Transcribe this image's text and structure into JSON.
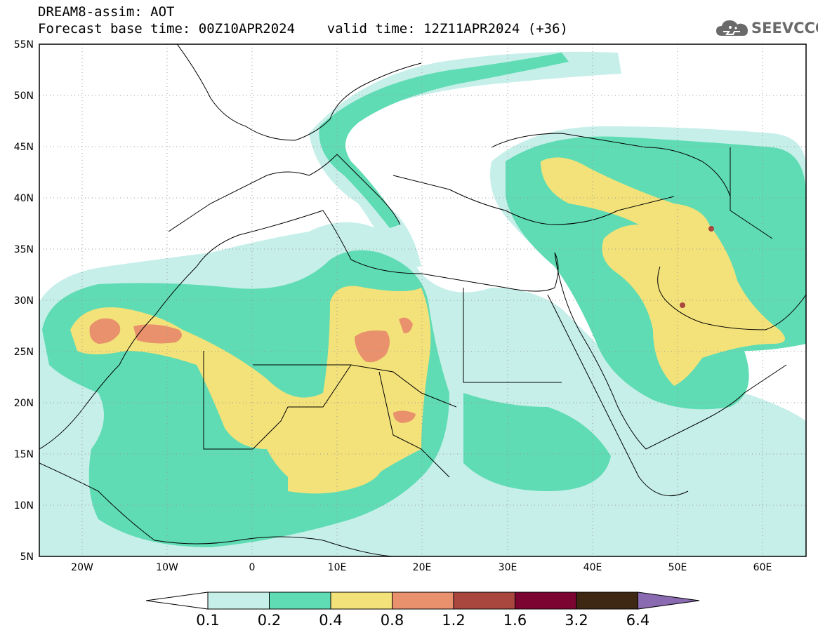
{
  "header": {
    "line1": "DREAM8-assim: AOT",
    "line2": "Forecast base time: 00Z10APR2024    valid time: 12Z11APR2024 (+36)"
  },
  "logo": {
    "text": "SEEVCCC",
    "icon": "cloud-icon",
    "color": "#6a6a6a"
  },
  "map": {
    "lon_range": [
      -25,
      65
    ],
    "lat_range": [
      5,
      55
    ],
    "lat_labels": [
      "55N",
      "50N",
      "45N",
      "40N",
      "35N",
      "30N",
      "25N",
      "20N",
      "15N",
      "10N",
      "5N"
    ],
    "lon_labels": [
      "20W",
      "10W",
      "0",
      "10E",
      "20E",
      "30E",
      "40E",
      "50E",
      "60E"
    ],
    "gridlines": "dotted"
  },
  "colorbar": {
    "labels": [
      "0.1",
      "0.2",
      "0.4",
      "0.8",
      "1.2",
      "1.6",
      "3.2",
      "6.4"
    ],
    "colors": [
      "#c6efe9",
      "#5fdcb3",
      "#f3e27a",
      "#e8916c",
      "#a9473f",
      "#7b0530",
      "#3e2814",
      "#8a6ab0"
    ]
  }
}
